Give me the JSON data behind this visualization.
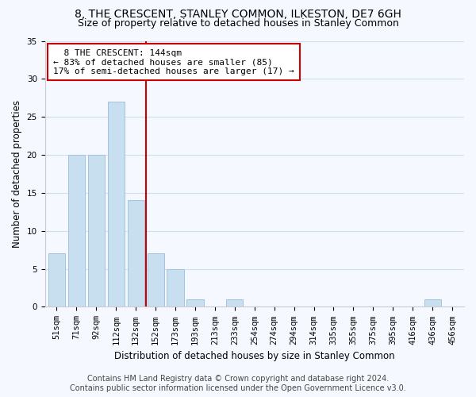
{
  "title": "8, THE CRESCENT, STANLEY COMMON, ILKESTON, DE7 6GH",
  "subtitle": "Size of property relative to detached houses in Stanley Common",
  "bar_labels": [
    "51sqm",
    "71sqm",
    "92sqm",
    "112sqm",
    "132sqm",
    "152sqm",
    "173sqm",
    "193sqm",
    "213sqm",
    "233sqm",
    "254sqm",
    "274sqm",
    "294sqm",
    "314sqm",
    "335sqm",
    "355sqm",
    "375sqm",
    "395sqm",
    "416sqm",
    "436sqm",
    "456sqm"
  ],
  "bar_values": [
    7,
    20,
    20,
    27,
    14,
    7,
    5,
    1,
    0,
    1,
    0,
    0,
    0,
    0,
    0,
    0,
    0,
    0,
    0,
    1,
    0
  ],
  "bar_color": "#c8dff0",
  "bar_edge_color": "#a0c4e0",
  "vline_x": 4.5,
  "vline_color": "#cc0000",
  "ylim": [
    0,
    35
  ],
  "yticks": [
    0,
    5,
    10,
    15,
    20,
    25,
    30,
    35
  ],
  "ylabel": "Number of detached properties",
  "xlabel": "Distribution of detached houses by size in Stanley Common",
  "annotation_title": "8 THE CRESCENT: 144sqm",
  "annotation_line1": "← 83% of detached houses are smaller (85)",
  "annotation_line2": "17% of semi-detached houses are larger (17) →",
  "footer_line1": "Contains HM Land Registry data © Crown copyright and database right 2024.",
  "footer_line2": "Contains public sector information licensed under the Open Government Licence v3.0.",
  "bg_color": "#f5f9ff",
  "grid_color": "#d0dff0",
  "title_fontsize": 10,
  "subtitle_fontsize": 9,
  "axis_label_fontsize": 8.5,
  "tick_fontsize": 7.5,
  "annotation_fontsize": 8,
  "footer_fontsize": 7
}
